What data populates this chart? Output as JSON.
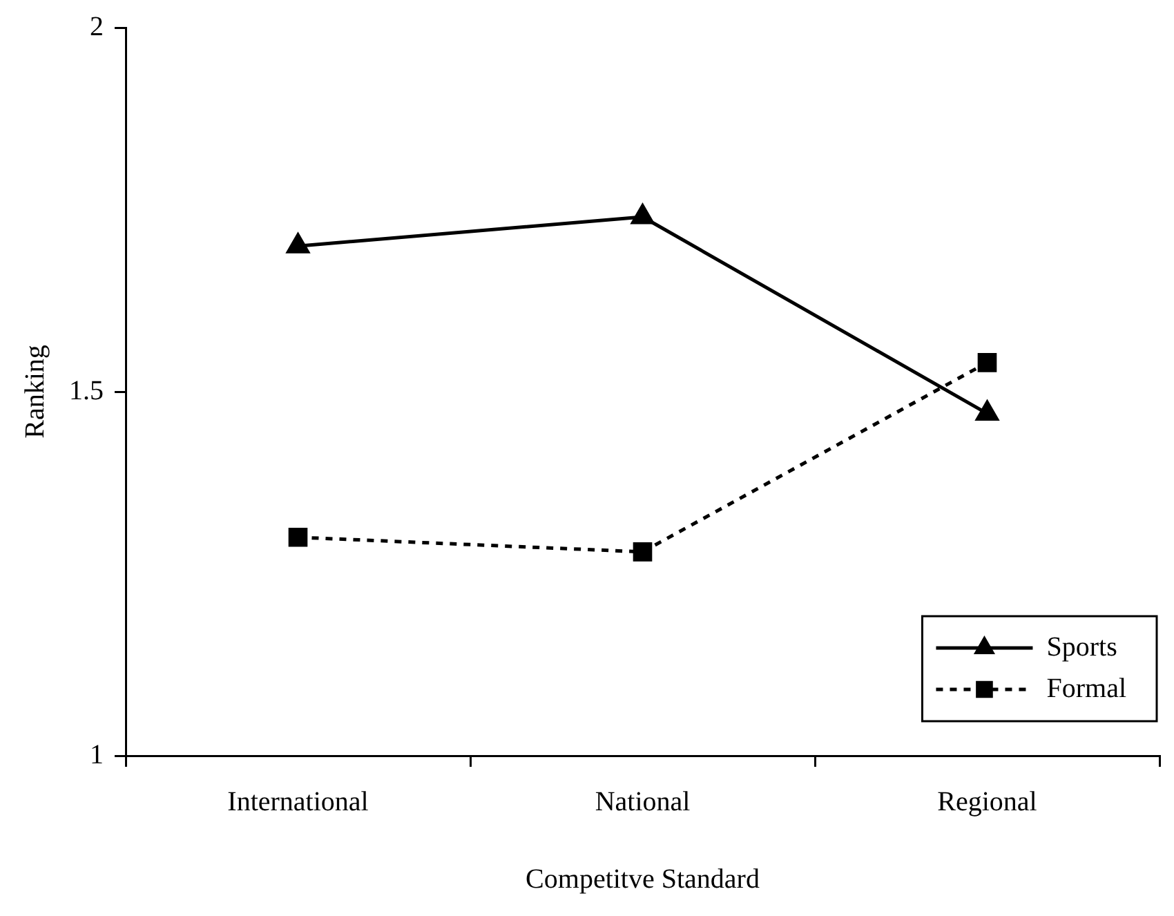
{
  "chart_data": {
    "type": "line",
    "xlabel": "Competitve Standard",
    "ylabel": "Ranking",
    "categories": [
      "International",
      "National",
      "Regional"
    ],
    "series": [
      {
        "name": "Sports",
        "color": "#000000",
        "values": [
          1.7,
          1.74,
          1.47
        ],
        "marker": "triangle",
        "line_style": "solid"
      },
      {
        "name": "Formal",
        "color": "#000000",
        "values": [
          1.3,
          1.28,
          1.54
        ],
        "marker": "square",
        "line_style": "dashed"
      }
    ],
    "ylim": [
      1,
      2
    ],
    "yticks": [
      1,
      1.5,
      2
    ],
    "grid": false,
    "legend": "bottom right"
  }
}
